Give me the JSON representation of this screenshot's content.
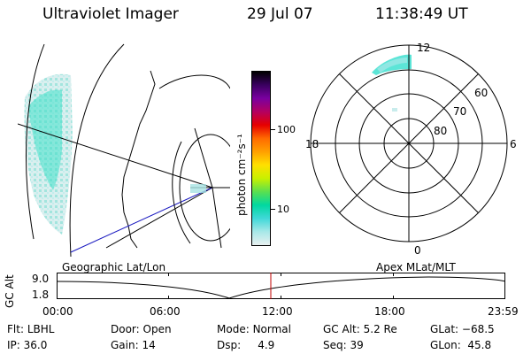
{
  "header": {
    "title": "Ultraviolet Imager",
    "date": "29 Jul 07",
    "time": "11:38:49 UT"
  },
  "colorbar": {
    "unit_label": "photon cm⁻²s⁻¹",
    "ticks": [
      "100",
      "10"
    ],
    "colors": [
      "#000000",
      "#3a0060",
      "#7a00a0",
      "#b40060",
      "#e60000",
      "#ff6a00",
      "#ffa000",
      "#ffe000",
      "#c8f000",
      "#5ae050",
      "#00d8a0",
      "#40d8d8",
      "#a8e8e8",
      "#e8f0f0"
    ]
  },
  "polar": {
    "mlt_labels": {
      "top": "12",
      "left": "18",
      "right": "6",
      "bottom": "0"
    },
    "lat_labels": [
      "60",
      "70",
      "80"
    ],
    "aurora_color": "#40e0d0"
  },
  "timeline": {
    "left_label": "Geographic Lat/Lon",
    "right_label": "Apex MLat/MLT",
    "ylabel": "GC Alt",
    "ymax": "9.0",
    "ymin": "1.8",
    "ticks": [
      "00:00",
      "06:00",
      "12:00",
      "18:00",
      "23:59"
    ],
    "marker_color": "#c00000"
  },
  "status": {
    "flt_label": "Flt:",
    "flt_value": "LBHL",
    "ip_label": "IP:",
    "ip_value": "36.0",
    "door_label": "Door:",
    "door_value": "Open",
    "gain_label": "Gain:",
    "gain_value": "14",
    "mode_label": "Mode:",
    "mode_value": "Normal",
    "dsp_label": "Dsp:",
    "dsp_value": "4.9",
    "gcalt_label": "GC Alt:",
    "gcalt_value": "5.2 Re",
    "seq_label": "Seq:",
    "seq_value": "39",
    "glat_label": "GLat:",
    "glat_value": "−68.5",
    "glon_label": "GLon:",
    "glon_value": "45.8"
  }
}
